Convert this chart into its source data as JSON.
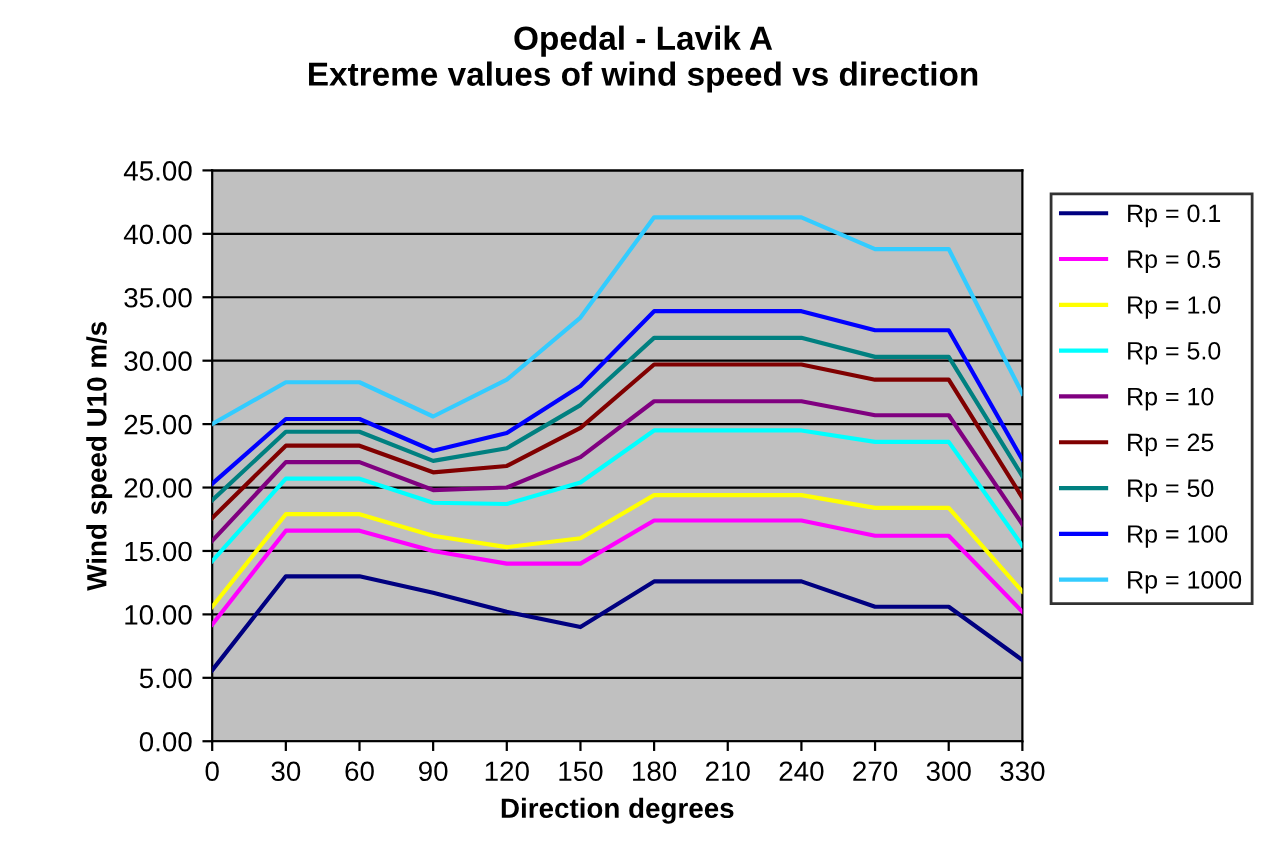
{
  "chart_data": {
    "type": "line",
    "title": "Opedal - Lavik A\nExtreme values of wind speed vs direction",
    "xlabel": "Direction degrees",
    "ylabel": "Wind speed U10 m/s",
    "x": [
      0,
      30,
      60,
      90,
      120,
      150,
      180,
      210,
      240,
      270,
      300,
      330
    ],
    "series": [
      {
        "name": "Rp = 0.1",
        "color": "#000080",
        "values": [
          5.6,
          13.0,
          13.0,
          11.7,
          10.2,
          9.0,
          12.6,
          12.6,
          12.6,
          10.6,
          10.6,
          6.4
        ]
      },
      {
        "name": "Rp = 0.5",
        "color": "#ff00ff",
        "values": [
          9.2,
          16.6,
          16.6,
          15.0,
          14.0,
          14.0,
          17.4,
          17.4,
          17.4,
          16.2,
          16.2,
          10.2
        ]
      },
      {
        "name": "Rp = 1.0",
        "color": "#ffff00",
        "values": [
          10.6,
          17.9,
          17.9,
          16.2,
          15.3,
          16.0,
          19.4,
          19.4,
          19.4,
          18.4,
          18.4,
          11.8
        ]
      },
      {
        "name": "Rp = 5.0",
        "color": "#00ffff",
        "values": [
          14.2,
          20.7,
          20.7,
          18.8,
          18.7,
          20.4,
          24.5,
          24.5,
          24.5,
          23.6,
          23.6,
          15.4
        ]
      },
      {
        "name": "Rp = 10",
        "color": "#800080",
        "values": [
          15.8,
          22.0,
          22.0,
          19.8,
          20.0,
          22.4,
          26.8,
          26.8,
          26.8,
          25.7,
          25.7,
          17.1
        ]
      },
      {
        "name": "Rp = 25",
        "color": "#800000",
        "values": [
          17.6,
          23.3,
          23.3,
          21.2,
          21.7,
          24.7,
          29.7,
          29.7,
          29.7,
          28.5,
          28.5,
          19.2
        ]
      },
      {
        "name": "Rp = 50",
        "color": "#008080",
        "values": [
          19.0,
          24.4,
          24.4,
          22.1,
          23.1,
          26.5,
          31.8,
          31.8,
          31.8,
          30.3,
          30.3,
          20.9
        ]
      },
      {
        "name": "Rp = 100",
        "color": "#0000ff",
        "values": [
          20.3,
          25.4,
          25.4,
          22.9,
          24.3,
          28.0,
          33.9,
          33.9,
          33.9,
          32.4,
          32.4,
          22.2
        ]
      },
      {
        "name": "Rp = 1000",
        "color": "#33ccff",
        "values": [
          25.0,
          28.3,
          28.3,
          25.6,
          28.5,
          33.4,
          41.3,
          41.3,
          41.3,
          38.8,
          38.8,
          27.4
        ]
      }
    ],
    "xlim": [
      0,
      330
    ],
    "xticks": [
      0,
      30,
      60,
      90,
      120,
      150,
      180,
      210,
      240,
      270,
      300,
      330
    ],
    "ylim": [
      0,
      45
    ],
    "yticks": [
      {
        "value": 0,
        "label": "0.00"
      },
      {
        "value": 5,
        "label": "5.00"
      },
      {
        "value": 10,
        "label": "10.00"
      },
      {
        "value": 15,
        "label": "15.00"
      },
      {
        "value": 20,
        "label": "20.00"
      },
      {
        "value": 25,
        "label": "25.00"
      },
      {
        "value": 30,
        "label": "30.00"
      },
      {
        "value": 35,
        "label": "35.00"
      },
      {
        "value": 40,
        "label": "40.00"
      },
      {
        "value": 45,
        "label": "45.00"
      }
    ],
    "grid": "y",
    "legend": "right",
    "marker": "none",
    "line_style": "solid"
  }
}
